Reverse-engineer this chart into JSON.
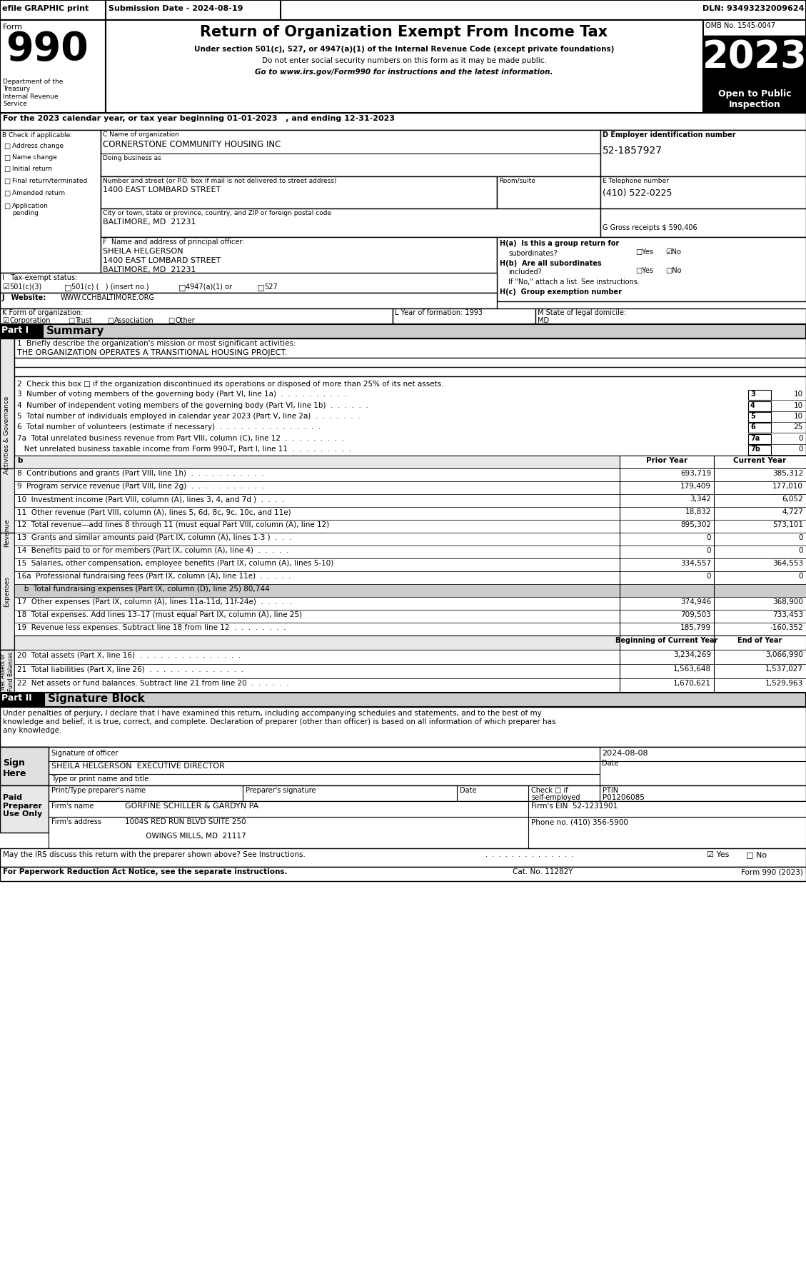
{
  "header_bar": {
    "efile_text": "efile GRAPHIC print",
    "submission_text": "Submission Date - 2024-08-19",
    "dln_text": "DLN: 93493232009624"
  },
  "form_title": {
    "title": "Return of Organization Exempt From Income Tax",
    "subtitle1": "Under section 501(c), 527, or 4947(a)(1) of the Internal Revenue Code (except private foundations)",
    "subtitle2": "Do not enter social security numbers on this form as it may be made public.",
    "subtitle3": "Go to www.irs.gov/Form990 for instructions and the latest information.",
    "year": "2023",
    "omb": "OMB No. 1545-0047",
    "open_public": "Open to Public\nInspection"
  },
  "dept": "Department of the\nTreasury\nInternal Revenue\nService",
  "section_a_text": "For the 2023 calendar year, or tax year beginning 01-01-2023   , and ending 12-31-2023",
  "section_b_items": [
    "Address change",
    "Name change",
    "Initial return",
    "Final return/terminated",
    "Amended return",
    "Application\npending"
  ],
  "org_name": "CORNERSTONE COMMUNITY HOUSING INC",
  "ein": "52-1857927",
  "street": "1400 EAST LOMBARD STREET",
  "city": "BALTIMORE, MD  21231",
  "phone": "(410) 522-0225",
  "gross_receipts": "G Gross receipts $ 590,406",
  "principal_name": "SHEILA HELGERSON",
  "principal_street": "1400 EAST LOMBARD STREET",
  "principal_city": "BALTIMORE, MD  21231",
  "website": "WWW.CCHBALTIMORE.ORG",
  "year_formation": "1993",
  "state_domicile": "MD",
  "mission": "THE ORGANIZATION OPERATES A TRANSITIONAL HOUSING PROJECT.",
  "line3_val": "10",
  "line4_val": "10",
  "line5_val": "10",
  "line6_val": "25",
  "line7a_val": "0",
  "line7b_val": "0",
  "col_prior": "Prior Year",
  "col_current": "Current Year",
  "line8_prior": "693,719",
  "line8_current": "385,312",
  "line9_prior": "179,409",
  "line9_current": "177,010",
  "line10_prior": "3,342",
  "line10_current": "6,052",
  "line11_prior": "18,832",
  "line11_current": "4,727",
  "line12_prior": "895,302",
  "line12_current": "573,101",
  "line13_prior": "0",
  "line13_current": "0",
  "line14_prior": "0",
  "line14_current": "0",
  "line15_prior": "334,557",
  "line15_current": "364,553",
  "line16a_prior": "0",
  "line16a_current": "0",
  "line16b_text": "   b  Total fundraising expenses (Part IX, column (D), line 25) 80,744",
  "line17_prior": "374,946",
  "line17_current": "368,900",
  "line18_prior": "709,503",
  "line18_current": "733,453",
  "line19_prior": "185,799",
  "line19_current": "-160,352",
  "col_begin": "Beginning of Current Year",
  "col_end": "End of Year",
  "line20_begin": "3,234,269",
  "line20_end": "3,066,990",
  "line21_begin": "1,563,648",
  "line21_end": "1,537,027",
  "line22_begin": "1,670,621",
  "line22_end": "1,529,963",
  "sig_perjury1": "Under penalties of perjury, I declare that I have examined this return, including accompanying schedules and statements, and to the best of my",
  "sig_perjury2": "knowledge and belief, it is true, correct, and complete. Declaration of preparer (other than officer) is based on all information of which preparer has",
  "sig_perjury3": "any knowledge.",
  "sig_date": "2024-08-08",
  "sig_name": "SHEILA HELGERSON  EXECUTIVE DIRECTOR",
  "ptin_val": "P01206085",
  "firm_name": "GORFINE SCHILLER & GARDYN PA",
  "firm_ein": "52-1231901",
  "firm_addr": "1004S RED RUN BLVD SUITE 250",
  "firm_city": "OWINGS MILLS, MD  21117"
}
